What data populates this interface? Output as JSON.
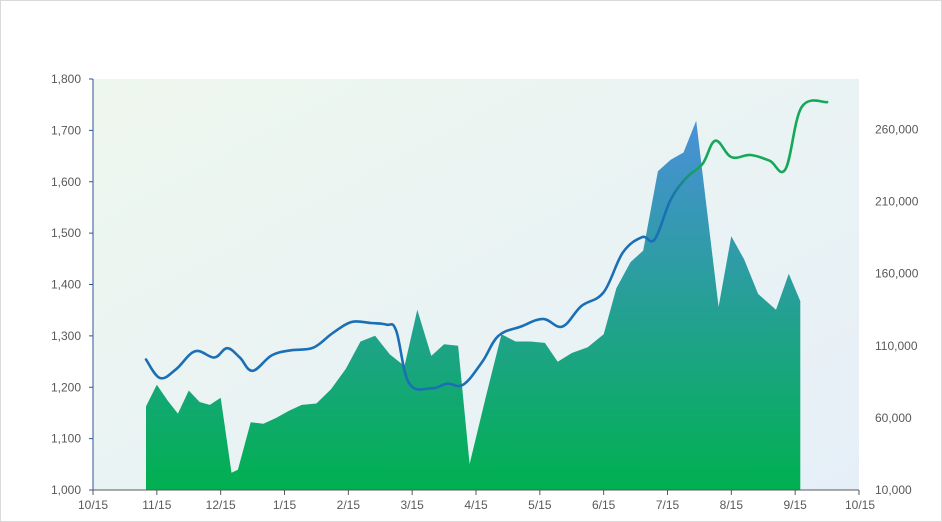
{
  "chart_data": {
    "type": "line+area",
    "title": "",
    "xlabel": "",
    "ylabel": "",
    "y2label": "",
    "x_ticks": [
      "10/15",
      "11/15",
      "12/15",
      "1/15",
      "2/15",
      "3/15",
      "4/15",
      "5/15",
      "6/15",
      "7/15",
      "8/15",
      "9/15",
      "10/15"
    ],
    "y_left": {
      "ticks": [
        "1,000",
        "1,100",
        "1,200",
        "1,300",
        "1,400",
        "1,500",
        "1,600",
        "1,700",
        "1,800"
      ],
      "range": [
        1000,
        1800
      ]
    },
    "y_right": {
      "ticks": [
        "10,000",
        "60,000",
        "110,000",
        "160,000",
        "210,000",
        "260,000"
      ],
      "range": [
        10000,
        295000
      ]
    },
    "x_range_months": [
      0,
      12
    ],
    "grid": false,
    "legend": "none",
    "colors": {
      "line_early": "#1a6fb5",
      "line_late": "#16a85a",
      "area_top": "#4a90d9",
      "area_bottom": "#00b050",
      "plot_bg_left": "#eef7ee",
      "plot_bg_right": "#e6eff8",
      "left_axis": "#2f5597",
      "right_axis": "#b0b0b0"
    },
    "series": [
      {
        "type": "area",
        "axis": "right",
        "points": [
          [
            0.83,
            68000
          ],
          [
            1.0,
            83000
          ],
          [
            1.17,
            72000
          ],
          [
            1.33,
            63000
          ],
          [
            1.5,
            79000
          ],
          [
            1.67,
            71000
          ],
          [
            1.83,
            69000
          ],
          [
            2.0,
            74000
          ],
          [
            2.17,
            22000
          ],
          [
            2.27,
            24000
          ],
          [
            2.47,
            57000
          ],
          [
            2.67,
            56000
          ],
          [
            2.87,
            60000
          ],
          [
            3.07,
            65000
          ],
          [
            3.27,
            69000
          ],
          [
            3.5,
            70000
          ],
          [
            3.73,
            80000
          ],
          [
            3.96,
            94000
          ],
          [
            4.19,
            113000
          ],
          [
            4.42,
            117000
          ],
          [
            4.65,
            104000
          ],
          [
            4.88,
            96000
          ],
          [
            5.08,
            135000
          ],
          [
            5.3,
            103000
          ],
          [
            5.5,
            111000
          ],
          [
            5.72,
            110000
          ],
          [
            5.9,
            28000
          ],
          [
            6.15,
            74000
          ],
          [
            6.4,
            118000
          ],
          [
            6.62,
            113000
          ],
          [
            6.85,
            113000
          ],
          [
            7.08,
            112000
          ],
          [
            7.28,
            99000
          ],
          [
            7.5,
            105000
          ],
          [
            7.75,
            109000
          ],
          [
            8.0,
            118000
          ],
          [
            8.2,
            150000
          ],
          [
            8.42,
            168000
          ],
          [
            8.62,
            176000
          ],
          [
            8.85,
            231000
          ],
          [
            9.05,
            239000
          ],
          [
            9.25,
            244000
          ],
          [
            9.45,
            266000
          ],
          [
            9.8,
            137000
          ],
          [
            10.0,
            186000
          ],
          [
            10.2,
            170000
          ],
          [
            10.42,
            146000
          ],
          [
            10.7,
            135000
          ],
          [
            10.9,
            160000
          ],
          [
            11.08,
            141000
          ]
        ]
      },
      {
        "type": "line",
        "axis": "left",
        "color_split_x": 9.25,
        "points": [
          [
            0.83,
            1254
          ],
          [
            1.05,
            1218
          ],
          [
            1.3,
            1235
          ],
          [
            1.6,
            1270
          ],
          [
            1.9,
            1258
          ],
          [
            2.1,
            1276
          ],
          [
            2.3,
            1258
          ],
          [
            2.5,
            1232
          ],
          [
            2.8,
            1262
          ],
          [
            3.1,
            1272
          ],
          [
            3.45,
            1277
          ],
          [
            3.75,
            1305
          ],
          [
            4.05,
            1327
          ],
          [
            4.35,
            1325
          ],
          [
            4.6,
            1322
          ],
          [
            4.75,
            1310
          ],
          [
            4.95,
            1208
          ],
          [
            5.3,
            1198
          ],
          [
            5.55,
            1207
          ],
          [
            5.8,
            1205
          ],
          [
            6.1,
            1250
          ],
          [
            6.35,
            1300
          ],
          [
            6.7,
            1318
          ],
          [
            7.05,
            1333
          ],
          [
            7.35,
            1318
          ],
          [
            7.65,
            1358
          ],
          [
            8.0,
            1385
          ],
          [
            8.3,
            1462
          ],
          [
            8.6,
            1492
          ],
          [
            8.8,
            1488
          ],
          [
            9.05,
            1565
          ],
          [
            9.3,
            1608
          ],
          [
            9.55,
            1635
          ],
          [
            9.75,
            1680
          ],
          [
            10.0,
            1648
          ],
          [
            10.3,
            1652
          ],
          [
            10.6,
            1641
          ],
          [
            10.85,
            1625
          ],
          [
            11.1,
            1745
          ],
          [
            11.5,
            1755
          ]
        ]
      }
    ]
  }
}
